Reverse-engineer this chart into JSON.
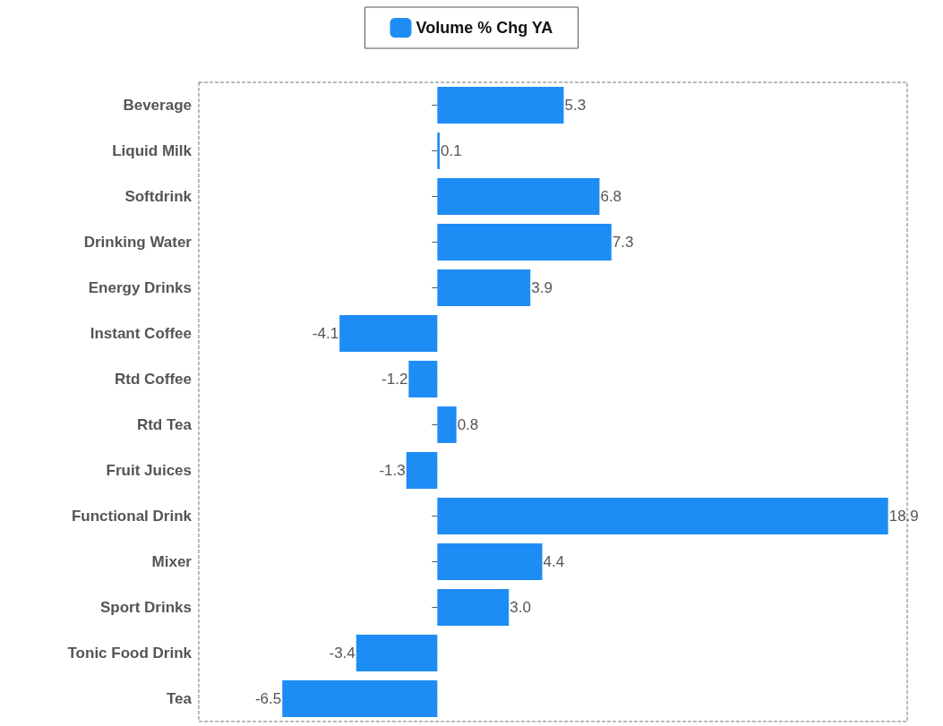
{
  "chart_data": {
    "type": "bar",
    "orientation": "horizontal",
    "categories": [
      "Beverage",
      "Liquid Milk",
      "Softdrink",
      "Drinking Water",
      "Energy Drinks",
      "Instant Coffee",
      "Rtd Coffee",
      "Rtd Tea",
      "Fruit Juices",
      "Functional Drink",
      "Mixer",
      "Sport Drinks",
      "Tonic Food Drink",
      "Tea"
    ],
    "series": [
      {
        "name": "Volume % Chg YA",
        "color": "#1e8cf5",
        "values": [
          5.3,
          0.1,
          6.8,
          7.3,
          3.9,
          -4.1,
          -1.2,
          0.8,
          -1.3,
          18.9,
          4.4,
          3.0,
          -3.4,
          -6.5
        ],
        "value_labels": [
          "5.3",
          "0.1",
          "6.8",
          "7.3",
          "3.9",
          "-4.1",
          "-1.2",
          "0.8",
          "-1.3",
          "18.9",
          "4.4",
          "3.0",
          "-3.4",
          "-6.5"
        ]
      }
    ],
    "xlim": [
      -10,
      19.7
    ],
    "tick_labels": "y",
    "grid": false,
    "legend": "top"
  }
}
